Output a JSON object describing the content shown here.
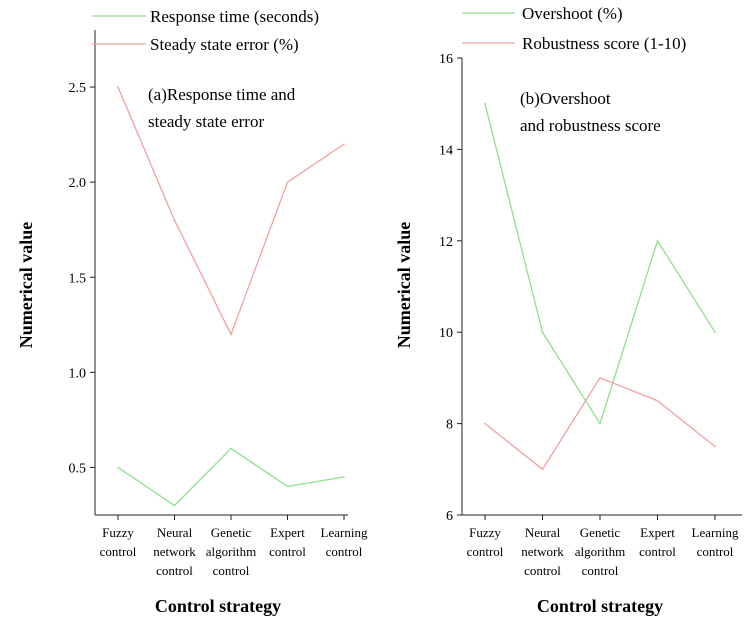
{
  "chart_data": [
    {
      "type": "line",
      "panel": "(a)",
      "annotation": [
        "(a)Response time  and",
        "steady state error"
      ],
      "xlabel": "Control strategy",
      "ylabel": "Numerical value",
      "ylim": [
        0.25,
        2.8
      ],
      "yticks": [
        "0.5",
        "1.0",
        "1.5",
        "2.0",
        "2.5"
      ],
      "categories": [
        [
          "Fuzzy",
          "control"
        ],
        [
          "Neural",
          "network",
          "control"
        ],
        [
          "Genetic",
          "algorithm",
          "control"
        ],
        [
          "Expert",
          "control"
        ],
        [
          "Learning",
          "control"
        ]
      ],
      "series": [
        {
          "name": "Response time (seconds)",
          "color": "#8ee08e",
          "values": [
            0.5,
            0.3,
            0.6,
            0.4,
            0.45
          ]
        },
        {
          "name": "Steady state error (%)",
          "color": "#f4a0a0",
          "values": [
            2.5,
            1.8,
            1.2,
            2.0,
            2.2
          ]
        }
      ],
      "legend_position": "top",
      "grid": false
    },
    {
      "type": "line",
      "panel": "(b)",
      "annotation": [
        "(b)Overshoot",
        "and robustness score"
      ],
      "xlabel": "Control strategy",
      "ylabel": "Numerical value",
      "ylim": [
        6,
        16
      ],
      "yticks": [
        "6",
        "8",
        "10",
        "12",
        "14",
        "16"
      ],
      "categories": [
        [
          "Fuzzy",
          "control"
        ],
        [
          "Neural",
          "network",
          "control"
        ],
        [
          "Genetic",
          "algorithm",
          "control"
        ],
        [
          "Expert",
          "control"
        ],
        [
          "Learning",
          "control"
        ]
      ],
      "series": [
        {
          "name": "Overshoot (%)",
          "color": "#8ee08e",
          "values": [
            15,
            10,
            8,
            12,
            10
          ]
        },
        {
          "name": "Robustness score (1-10)",
          "color": "#f4a0a0",
          "values": [
            8,
            7,
            9,
            8.5,
            7.5
          ]
        }
      ],
      "legend_position": "top",
      "grid": false
    }
  ]
}
